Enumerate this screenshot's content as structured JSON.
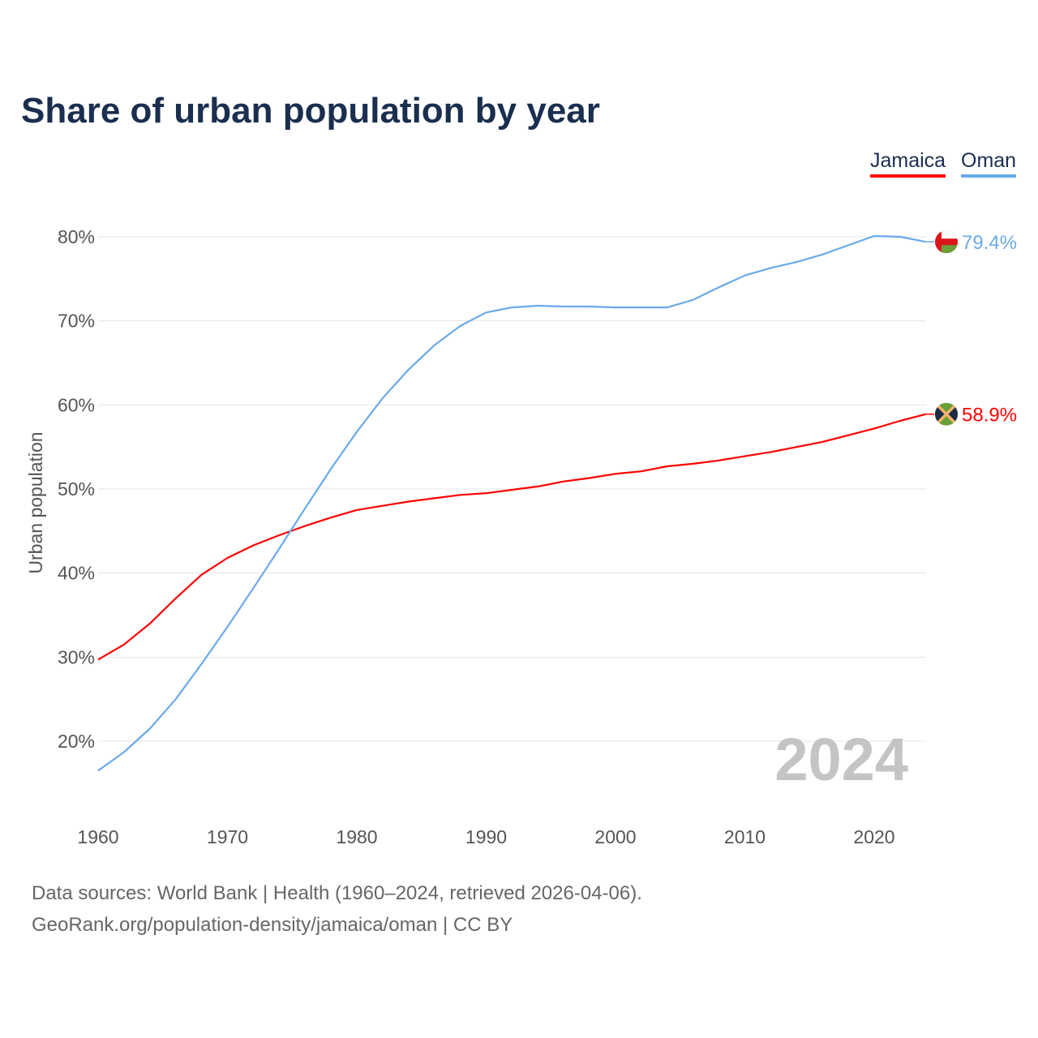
{
  "chart_data": {
    "type": "line",
    "title": "Share of urban population by year",
    "xlabel": "",
    "ylabel": "Urban population",
    "xlim": [
      1960,
      2024
    ],
    "ylim": [
      13,
      83
    ],
    "x_ticks": [
      "1960",
      "1970",
      "1980",
      "1990",
      "2000",
      "2010",
      "2020"
    ],
    "y_ticks": [
      "20%",
      "30%",
      "40%",
      "50%",
      "60%",
      "70%",
      "80%"
    ],
    "grid": true,
    "legend_placement": "top-right",
    "watermark_year": "2024",
    "x": [
      1960,
      1962,
      1964,
      1966,
      1968,
      1970,
      1972,
      1974,
      1976,
      1978,
      1980,
      1982,
      1984,
      1986,
      1988,
      1990,
      1992,
      1994,
      1996,
      1998,
      2000,
      2002,
      2004,
      2006,
      2008,
      2010,
      2012,
      2014,
      2016,
      2018,
      2020,
      2022,
      2024
    ],
    "series": [
      {
        "name": "Jamaica",
        "color": "#ff0000",
        "end_label": "58.9%",
        "values": [
          29.7,
          31.5,
          34.0,
          37.0,
          39.8,
          41.8,
          43.3,
          44.5,
          45.6,
          46.6,
          47.5,
          48.0,
          48.5,
          48.9,
          49.3,
          49.5,
          49.9,
          50.3,
          50.9,
          51.3,
          51.8,
          52.1,
          52.7,
          53.0,
          53.4,
          53.9,
          54.4,
          55.0,
          55.6,
          56.4,
          57.2,
          58.1,
          58.9
        ]
      },
      {
        "name": "Oman",
        "color": "#6aaae9",
        "end_label": "79.4%",
        "values": [
          16.5,
          18.7,
          21.5,
          25.0,
          29.2,
          33.6,
          38.2,
          42.9,
          47.7,
          52.4,
          56.8,
          60.8,
          64.2,
          67.1,
          69.4,
          71.0,
          71.6,
          71.8,
          71.7,
          71.7,
          71.6,
          71.6,
          71.6,
          72.5,
          74.0,
          75.4,
          76.3,
          77.0,
          77.9,
          79.0,
          80.1,
          80.0,
          79.4
        ]
      }
    ]
  },
  "footer": {
    "line1": "Data sources: World Bank | Health (1960–2024, retrieved 2026-04-06).",
    "line2": "GeoRank.org/population-density/jamaica/oman | CC BY"
  }
}
